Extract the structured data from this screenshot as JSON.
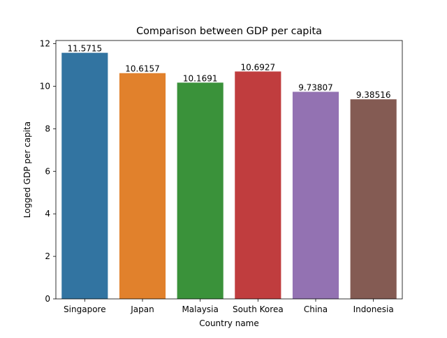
{
  "chart_data": {
    "type": "bar",
    "title": "Comparison between GDP per capita",
    "xlabel": "Country name",
    "ylabel": "Logged GDP per capita",
    "categories": [
      "Singapore",
      "Japan",
      "Malaysia",
      "South Korea",
      "China",
      "Indonesia"
    ],
    "values": [
      11.5715,
      10.6157,
      10.1691,
      10.6927,
      9.73807,
      9.38516
    ],
    "value_labels": [
      "11.5715",
      "10.6157",
      "10.1691",
      "10.6927",
      "9.73807",
      "9.38516"
    ],
    "colors": [
      "#3274a1",
      "#e1812c",
      "#3a923a",
      "#c03d3e",
      "#9372b2",
      "#845b53"
    ],
    "ylim": [
      0,
      12.15
    ],
    "yticks": [
      0,
      2,
      4,
      6,
      8,
      10,
      12
    ],
    "grid": false,
    "legend": "none"
  }
}
